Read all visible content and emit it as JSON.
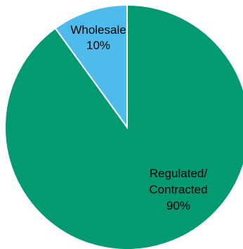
{
  "chart_data": {
    "type": "pie",
    "title": "",
    "slices": [
      {
        "name": "Wholesale",
        "label_lines": [
          "Wholesale",
          "10%"
        ],
        "value": 10,
        "color": "#4DBBEB"
      },
      {
        "name": "Regulated/ Contracted",
        "label_lines": [
          "Regulated/",
          "Contracted",
          "90%"
        ],
        "value": 90,
        "color": "#039A72"
      }
    ],
    "start_angle_deg": 0,
    "direction": "counterclockwise",
    "legend": "none"
  }
}
